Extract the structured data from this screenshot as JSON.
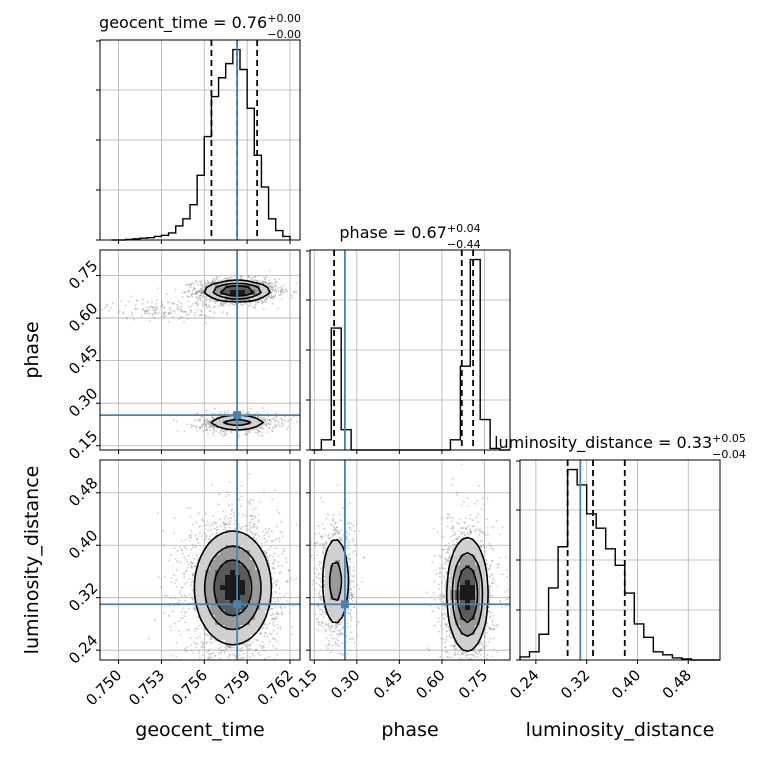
{
  "chart_data": {
    "type": "scatter",
    "subtype": "corner-plot",
    "parameters": [
      "geocent_time",
      "phase",
      "luminosity_distance"
    ],
    "truth": {
      "geocent_time": 0.7583,
      "phase": 0.258,
      "luminosity_distance": 0.31
    },
    "truth_color": "#4682b4",
    "grid": true,
    "panels_1d": [
      {
        "param": "geocent_time",
        "title_prefix": "geocent_time = ",
        "median": "0.76",
        "plus": "+0.00",
        "minus": "−0.00",
        "xlim": [
          0.7487,
          0.7627
        ],
        "quantiles": [
          0.7565,
          0.7583,
          0.7597
        ],
        "bin_edges": [
          0.7495,
          0.75,
          0.7505,
          0.751,
          0.7515,
          0.752,
          0.7525,
          0.753,
          0.7535,
          0.754,
          0.7545,
          0.755,
          0.7555,
          0.756,
          0.7565,
          0.757,
          0.7575,
          0.758,
          0.7585,
          0.759,
          0.7595,
          0.76,
          0.7605,
          0.761,
          0.7615,
          0.762
        ],
        "counts": [
          0,
          0,
          0.5,
          1,
          1.5,
          2,
          3,
          4,
          6,
          12,
          18,
          30,
          55,
          88,
          122,
          138,
          150,
          162,
          145,
          112,
          72,
          45,
          18,
          8,
          3
        ]
      },
      {
        "param": "phase",
        "title_prefix": "phase = ",
        "median": "0.67",
        "plus": "+0.04",
        "minus": "−0.44",
        "xlim": [
          0.135,
          0.84
        ],
        "quantiles": [
          0.22,
          0.67,
          0.71
        ],
        "bin_edges": [
          0.14,
          0.175,
          0.21,
          0.245,
          0.28,
          0.315,
          0.35,
          0.385,
          0.42,
          0.455,
          0.49,
          0.525,
          0.56,
          0.595,
          0.63,
          0.665,
          0.7,
          0.735,
          0.77,
          0.805,
          0.84
        ],
        "counts": [
          0,
          20,
          240,
          40,
          0,
          0,
          0,
          0,
          0,
          0,
          0,
          0,
          0,
          0,
          20,
          165,
          375,
          60,
          3,
          0
        ]
      },
      {
        "param": "luminosity_distance",
        "title_prefix": "luminosity_distance = ",
        "median": "0.33",
        "plus": "+0.05",
        "minus": "−0.04",
        "xlim": [
          0.215,
          0.53
        ],
        "quantiles": [
          0.29,
          0.33,
          0.38
        ],
        "bin_edges": [
          0.215,
          0.23,
          0.245,
          0.26,
          0.275,
          0.29,
          0.305,
          0.32,
          0.335,
          0.35,
          0.365,
          0.38,
          0.395,
          0.41,
          0.425,
          0.44,
          0.455,
          0.47,
          0.485,
          0.5,
          0.515,
          0.53
        ],
        "counts": [
          3,
          8,
          25,
          70,
          110,
          185,
          170,
          142,
          128,
          108,
          92,
          65,
          35,
          22,
          8,
          5,
          2,
          1,
          0,
          0,
          0
        ]
      }
    ],
    "panels_2d": [
      {
        "x": "geocent_time",
        "y": "phase",
        "xlim": [
          0.7487,
          0.7627
        ],
        "ylim": [
          0.135,
          0.84
        ],
        "blobs": [
          {
            "cx": 0.7583,
            "cy": 0.695,
            "sx": 0.0011,
            "sy": 0.017,
            "w": 0.65
          },
          {
            "cx": 0.7532,
            "cy": 0.63,
            "sx": 0.0016,
            "sy": 0.015,
            "w": 0.06
          },
          {
            "cx": 0.7583,
            "cy": 0.232,
            "sx": 0.0011,
            "sy": 0.014,
            "w": 0.29
          }
        ]
      },
      {
        "x": "geocent_time",
        "y": "luminosity_distance",
        "xlim": [
          0.7487,
          0.7627
        ],
        "ylim": [
          0.225,
          0.53
        ],
        "blobs": [
          {
            "cx": 0.758,
            "cy": 0.335,
            "sx": 0.0013,
            "sy": 0.042,
            "w": 1.0
          }
        ]
      },
      {
        "x": "phase",
        "y": "luminosity_distance",
        "xlim": [
          0.135,
          0.84
        ],
        "ylim": [
          0.225,
          0.53
        ],
        "blobs": [
          {
            "cx": 0.225,
            "cy": 0.345,
            "sx": 0.028,
            "sy": 0.04,
            "w": 0.3
          },
          {
            "cx": 0.69,
            "cy": 0.325,
            "sx": 0.035,
            "sy": 0.042,
            "w": 0.7
          }
        ]
      }
    ],
    "axis_labels": {
      "x": [
        "geocent_time",
        "phase",
        "luminosity_distance"
      ],
      "y": [
        "phase",
        "luminosity_distance"
      ]
    },
    "ticks": {
      "geocent_time": [
        "0.750",
        "0.753",
        "0.756",
        "0.759",
        "0.762"
      ],
      "phase": [
        "0.15",
        "0.30",
        "0.45",
        "0.60",
        "0.75"
      ],
      "luminosity_distance": [
        "0.24",
        "0.32",
        "0.40",
        "0.48"
      ]
    }
  }
}
